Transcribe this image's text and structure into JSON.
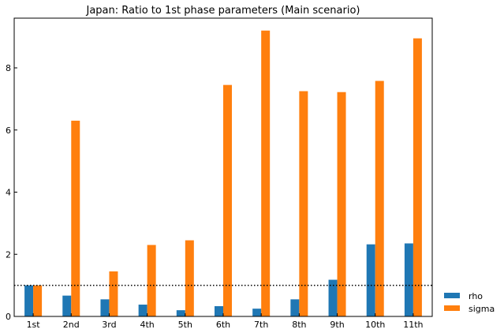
{
  "chart_data": {
    "type": "bar",
    "title": "Japan: Ratio to 1st phase parameters (Main scenario)",
    "xlabel": "",
    "ylabel": "",
    "categories": [
      "1st",
      "2nd",
      "3rd",
      "4th",
      "5th",
      "6th",
      "7th",
      "8th",
      "9th",
      "10th",
      "11th"
    ],
    "series": [
      {
        "name": "rho",
        "color": "#1f77b4",
        "values": [
          1.0,
          0.67,
          0.55,
          0.38,
          0.2,
          0.33,
          0.25,
          0.55,
          1.18,
          2.32,
          2.35
        ]
      },
      {
        "name": "sigma",
        "color": "#ff7f0e",
        "values": [
          1.0,
          6.3,
          1.45,
          2.3,
          2.45,
          7.45,
          9.2,
          7.25,
          7.22,
          7.58,
          8.95
        ]
      }
    ],
    "ylim": [
      0,
      9.6
    ],
    "yticks": [
      0,
      2,
      4,
      6,
      8
    ],
    "reference_line": {
      "y": 1.0,
      "style": "dotted",
      "color": "#000000"
    },
    "grid": false,
    "legend_position": "lower-right outside"
  }
}
